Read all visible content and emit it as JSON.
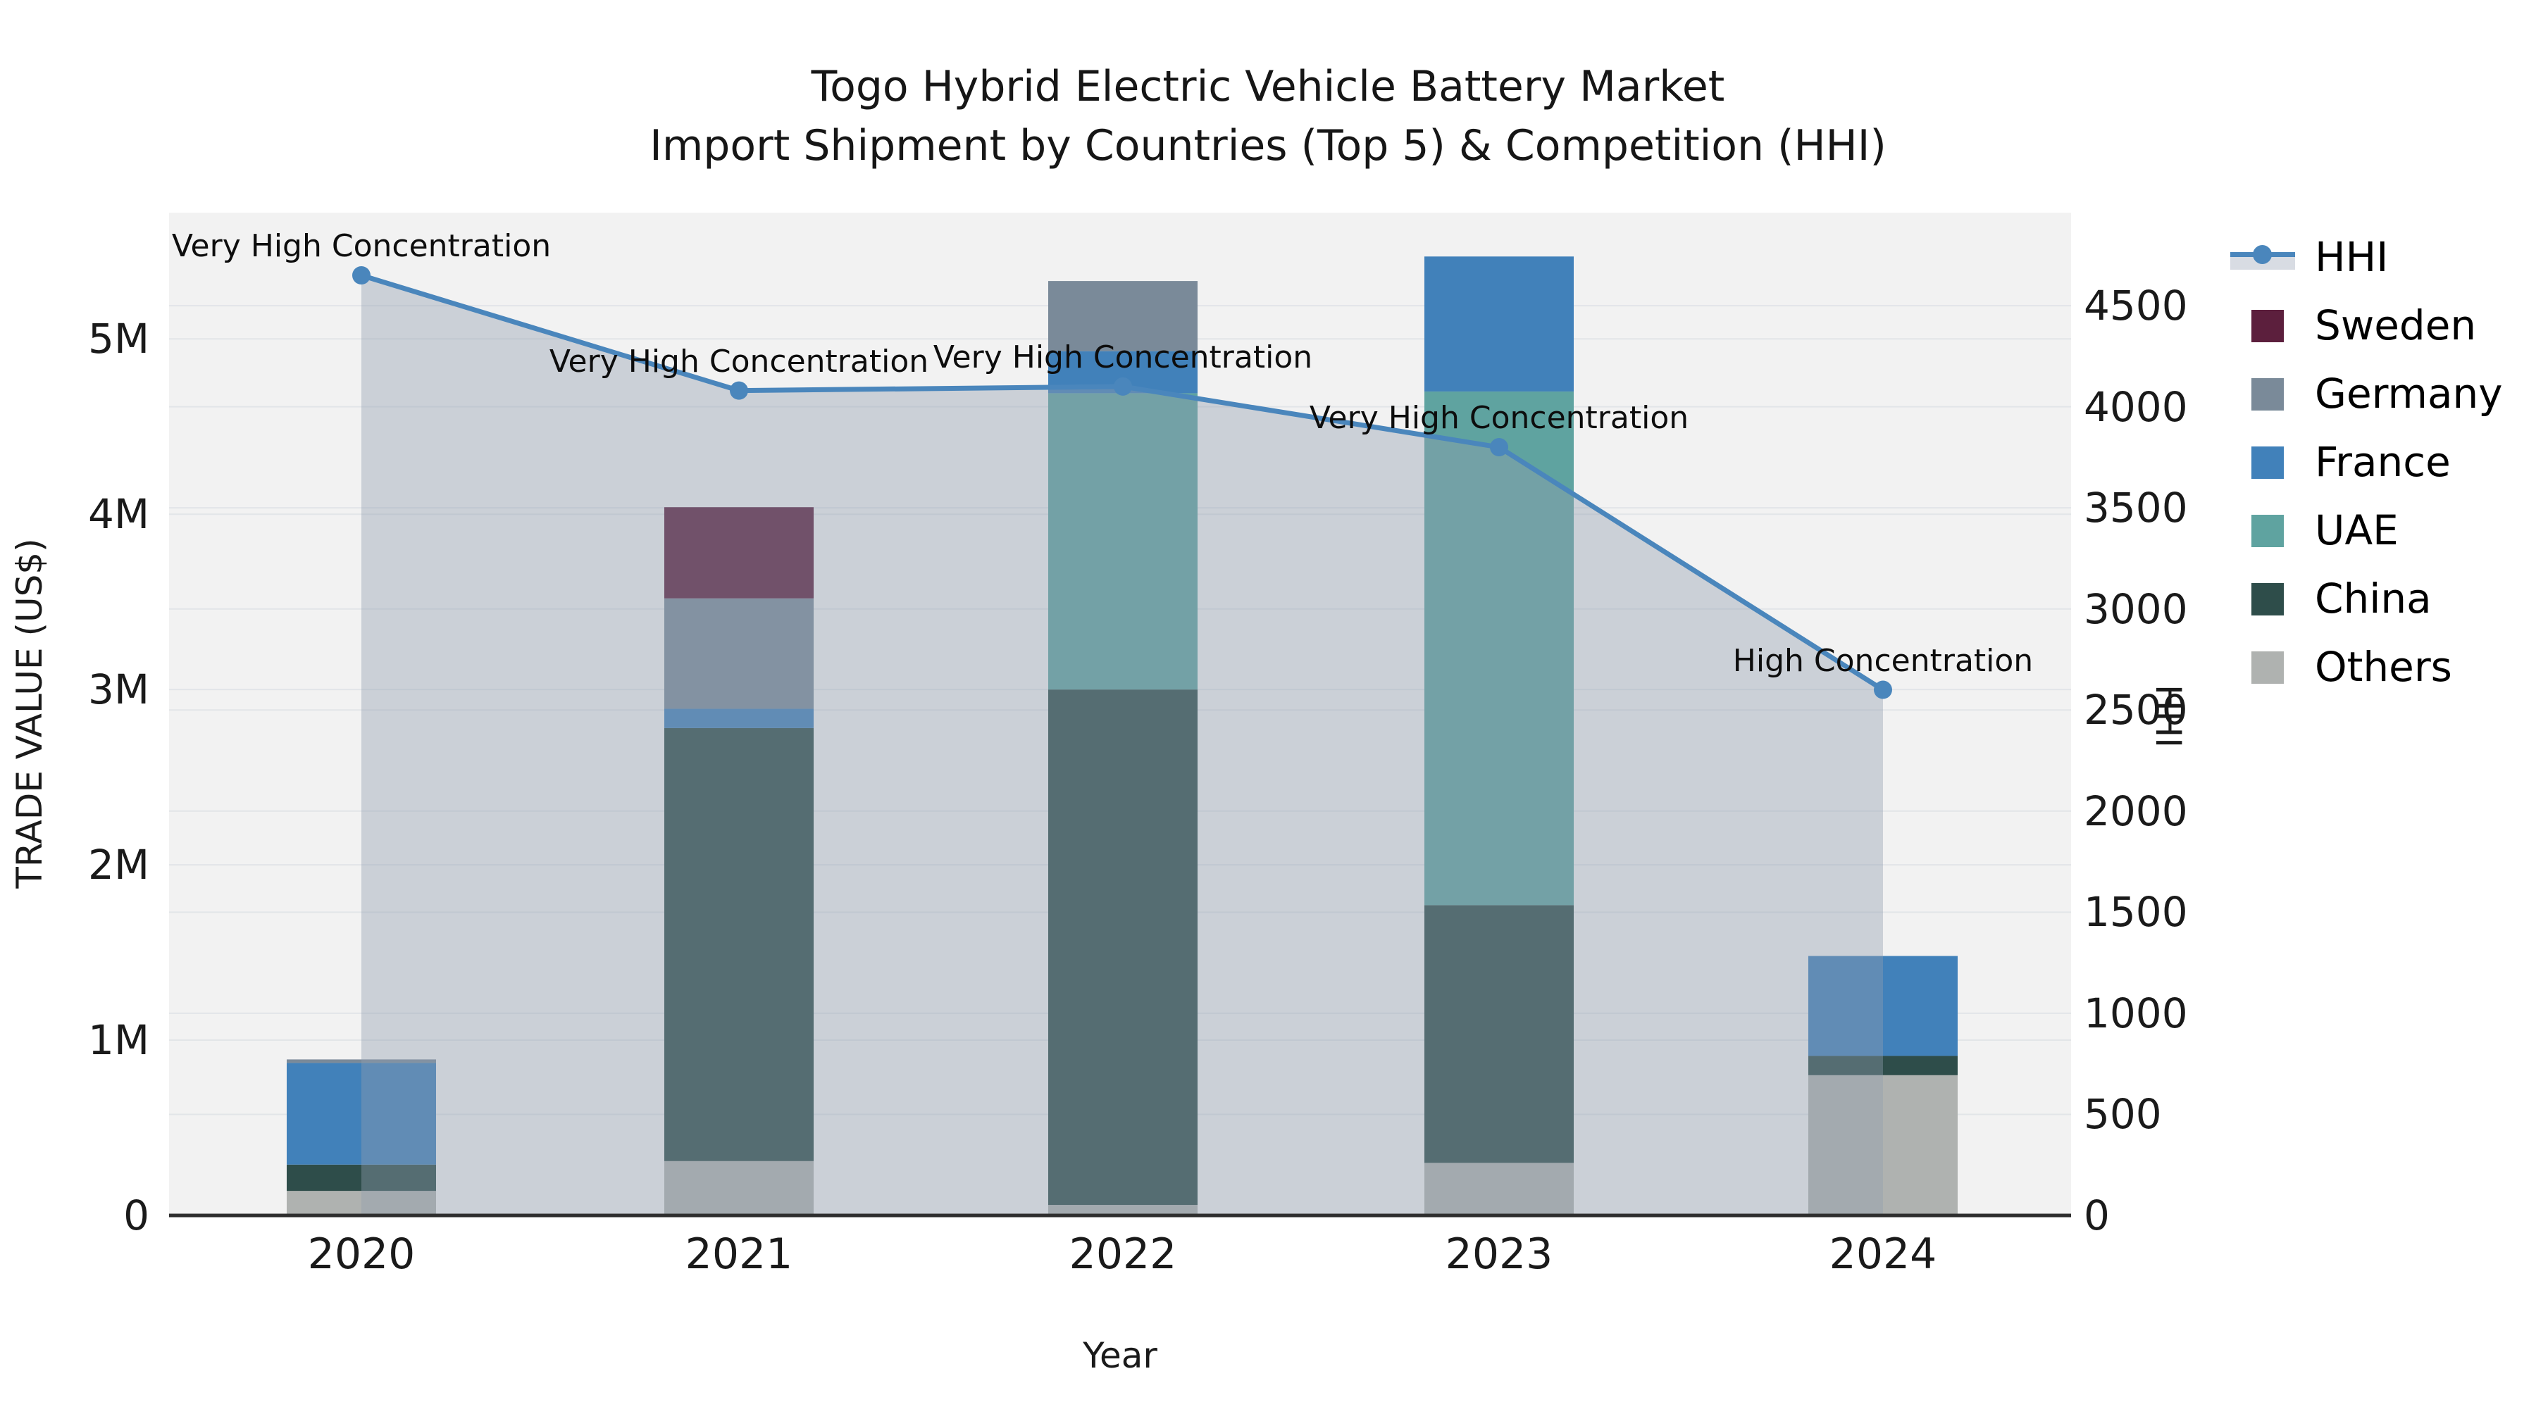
{
  "figure": {
    "title_line1": "Togo Hybrid Electric Vehicle Battery Market",
    "title_line2": "Import Shipment by Countries (Top 5) & Competition (HHI)"
  },
  "chart_data": {
    "type": "combo: stacked-bar (trade value) + line (HHI)",
    "categories": [
      "2020",
      "2021",
      "2022",
      "2023",
      "2024"
    ],
    "bar_unit": "US$ millions",
    "bar_series_bottom_to_top": [
      {
        "name": "Others",
        "color": "#afb2b0",
        "values": [
          0.14,
          0.31,
          0.06,
          0.3,
          0.8
        ]
      },
      {
        "name": "China",
        "color": "#2e4d4a",
        "values": [
          0.15,
          2.47,
          2.94,
          1.47,
          0.11
        ]
      },
      {
        "name": "UAE",
        "color": "#5fa3a0",
        "values": [
          0.0,
          0.0,
          1.69,
          2.93,
          0.0
        ]
      },
      {
        "name": "France",
        "color": "#4181ba",
        "values": [
          0.58,
          0.11,
          0.24,
          0.77,
          0.57
        ]
      },
      {
        "name": "Germany",
        "color": "#7a8a99",
        "values": [
          0.02,
          0.63,
          0.4,
          0.0,
          0.0
        ]
      },
      {
        "name": "Sweden",
        "color": "#5c1f3d",
        "values": [
          0.0,
          0.52,
          0.0,
          0.0,
          0.0
        ]
      }
    ],
    "line_series": {
      "name": "HHI",
      "color": "#4a86bc",
      "area_color": "#919db0",
      "area_opacity": 0.4,
      "values": [
        4650,
        4080,
        4100,
        3800,
        2600
      ]
    },
    "annotations": [
      {
        "category": "2020",
        "text": "Very High Concentration"
      },
      {
        "category": "2021",
        "text": "Very High Concentration"
      },
      {
        "category": "2022",
        "text": "Very High Concentration"
      },
      {
        "category": "2023",
        "text": "Very High Concentration"
      },
      {
        "category": "2024",
        "text": "High Concentration"
      }
    ],
    "axes": {
      "x": {
        "label": "Year"
      },
      "left": {
        "label": "TRADE VALUE (US$)",
        "ticks": [
          {
            "v": 0,
            "label": "0"
          },
          {
            "v": 1,
            "label": "1M"
          },
          {
            "v": 2,
            "label": "2M"
          },
          {
            "v": 3,
            "label": "3M"
          },
          {
            "v": 4,
            "label": "4M"
          },
          {
            "v": 5,
            "label": "5M"
          }
        ],
        "max": 5.72
      },
      "right": {
        "label": "HHI",
        "ticks": [
          0,
          500,
          1000,
          1500,
          2000,
          2500,
          3000,
          3500,
          4000,
          4500
        ],
        "max": 4960
      }
    },
    "legend": [
      {
        "label": "HHI",
        "type": "line",
        "color": "#4a86bc"
      },
      {
        "label": "Sweden",
        "type": "swatch",
        "color": "#5c1f3d"
      },
      {
        "label": "Germany",
        "type": "swatch",
        "color": "#7a8a99"
      },
      {
        "label": "France",
        "type": "swatch",
        "color": "#4181ba"
      },
      {
        "label": "UAE",
        "type": "swatch",
        "color": "#5fa3a0"
      },
      {
        "label": "China",
        "type": "swatch",
        "color": "#2e4d4a"
      },
      {
        "label": "Others",
        "type": "swatch",
        "color": "#afb2b0"
      }
    ],
    "style": {
      "plot_bg": "#f2f2f2",
      "grid_color": "#e2e5e8",
      "axis_line_color": "#2e2e2e"
    }
  }
}
